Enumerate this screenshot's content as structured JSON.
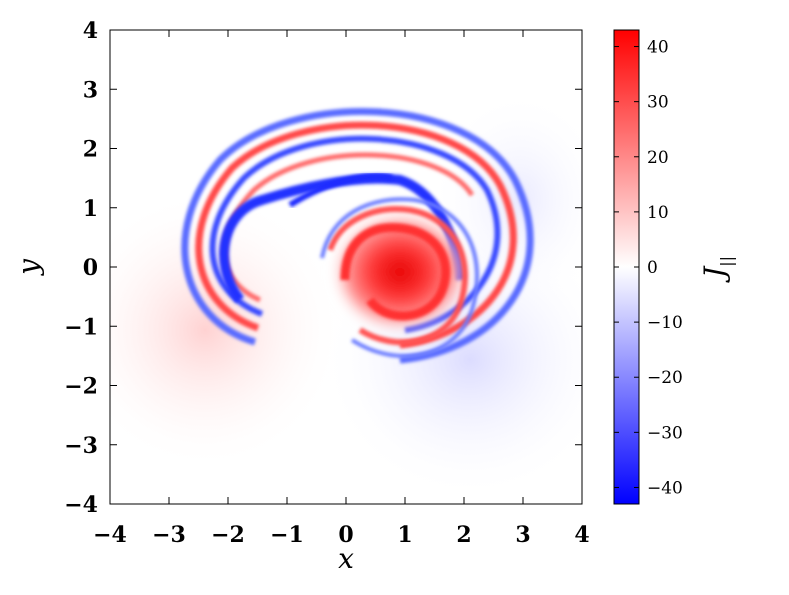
{
  "chart_data": {
    "type": "heatmap",
    "title": "",
    "xlabel": "x",
    "ylabel": "y",
    "xlim": [
      -4,
      4
    ],
    "ylim": [
      -4,
      4
    ],
    "xticks": [
      "−4",
      "−3",
      "−2",
      "−1",
      "0",
      "1",
      "2",
      "3",
      "4"
    ],
    "yticks": [
      "4",
      "3",
      "2",
      "1",
      "0",
      "−1",
      "−2",
      "−3",
      "−4"
    ],
    "grid": false,
    "colorbar": {
      "label_main": "J",
      "label_sub": "||",
      "range": [
        -43,
        43
      ],
      "ticks": [
        "40",
        "30",
        "20",
        "10",
        "0",
        "−10",
        "−20",
        "−30",
        "−40"
      ],
      "tick_values": [
        40,
        30,
        20,
        10,
        0,
        -10,
        -20,
        -30,
        -40
      ],
      "colors": {
        "min": "#0000ff",
        "mid": "#ffffff",
        "max": "#ff0000"
      }
    },
    "features": [
      {
        "kind": "vortex-core",
        "sign": "positive",
        "cx": 0.7,
        "cy": 0.0,
        "peak": 30
      },
      {
        "kind": "spiral-arm",
        "sign": "positive",
        "peak": 25
      },
      {
        "kind": "spiral-arm",
        "sign": "negative",
        "peak": -30
      },
      {
        "kind": "background",
        "sign": "positive",
        "cx": -2.5,
        "cy": -1.0,
        "peak": 4
      },
      {
        "kind": "background",
        "sign": "negative",
        "cx": 2.0,
        "cy": -1.5,
        "peak": -4
      }
    ]
  }
}
